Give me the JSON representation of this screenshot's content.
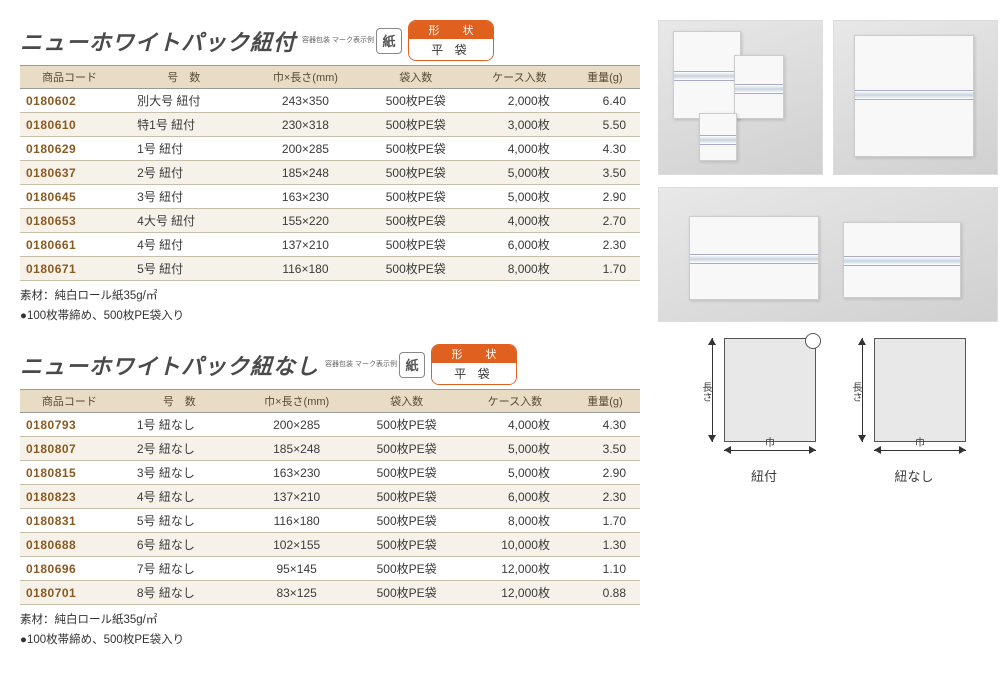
{
  "sections": [
    {
      "title": "ニューホワイトパック紐付",
      "paper_label": "容器包装\nマーク表示例",
      "paper_icon": "紙",
      "shape_top": "形　状",
      "shape_bottom": "平 袋",
      "columns": [
        "商品コード",
        "号　数",
        "巾×長さ(mm)",
        "袋入数",
        "ケース入数",
        "重量(g)"
      ],
      "rows": [
        [
          "0180602",
          "別大号 紐付",
          "243×350",
          "500枚PE袋",
          "2,000枚",
          "6.40"
        ],
        [
          "0180610",
          "特1号 紐付",
          "230×318",
          "500枚PE袋",
          "3,000枚",
          "5.50"
        ],
        [
          "0180629",
          "1号 紐付",
          "200×285",
          "500枚PE袋",
          "4,000枚",
          "4.30"
        ],
        [
          "0180637",
          "2号 紐付",
          "185×248",
          "500枚PE袋",
          "5,000枚",
          "3.50"
        ],
        [
          "0180645",
          "3号 紐付",
          "163×230",
          "500枚PE袋",
          "5,000枚",
          "2.90"
        ],
        [
          "0180653",
          "4大号 紐付",
          "155×220",
          "500枚PE袋",
          "4,000枚",
          "2.70"
        ],
        [
          "0180661",
          "4号 紐付",
          "137×210",
          "500枚PE袋",
          "6,000枚",
          "2.30"
        ],
        [
          "0180671",
          "5号 紐付",
          "116×180",
          "500枚PE袋",
          "8,000枚",
          "1.70"
        ]
      ],
      "notes": [
        "素材：純白ロール紙35g/㎡",
        "●100枚帯締め、500枚PE袋入り"
      ]
    },
    {
      "title": "ニューホワイトパック紐なし",
      "paper_label": "容器包装\nマーク表示例",
      "paper_icon": "紙",
      "shape_top": "形　状",
      "shape_bottom": "平 袋",
      "columns": [
        "商品コード",
        "号　数",
        "巾×長さ(mm)",
        "袋入数",
        "ケース入数",
        "重量(g)"
      ],
      "rows": [
        [
          "0180793",
          "1号 紐なし",
          "200×285",
          "500枚PE袋",
          "4,000枚",
          "4.30"
        ],
        [
          "0180807",
          "2号 紐なし",
          "185×248",
          "500枚PE袋",
          "5,000枚",
          "3.50"
        ],
        [
          "0180815",
          "3号 紐なし",
          "163×230",
          "500枚PE袋",
          "5,000枚",
          "2.90"
        ],
        [
          "0180823",
          "4号 紐なし",
          "137×210",
          "500枚PE袋",
          "6,000枚",
          "2.30"
        ],
        [
          "0180831",
          "5号 紐なし",
          "116×180",
          "500枚PE袋",
          "8,000枚",
          "1.70"
        ],
        [
          "0180688",
          "6号 紐なし",
          "102×155",
          "500枚PE袋",
          "10,000枚",
          "1.30"
        ],
        [
          "0180696",
          "7号 紐なし",
          "95×145",
          "500枚PE袋",
          "12,000枚",
          "1.10"
        ],
        [
          "0180701",
          "8号 紐なし",
          "83×125",
          "500枚PE袋",
          "12,000枚",
          "0.88"
        ]
      ],
      "notes": [
        "素材：純白ロール紙35g/㎡",
        "●100枚帯締め、500枚PE袋入り"
      ]
    }
  ],
  "diagram": {
    "v_label": "長さ",
    "h_label": "巾",
    "cap1": "紐付",
    "cap2": "紐なし"
  }
}
